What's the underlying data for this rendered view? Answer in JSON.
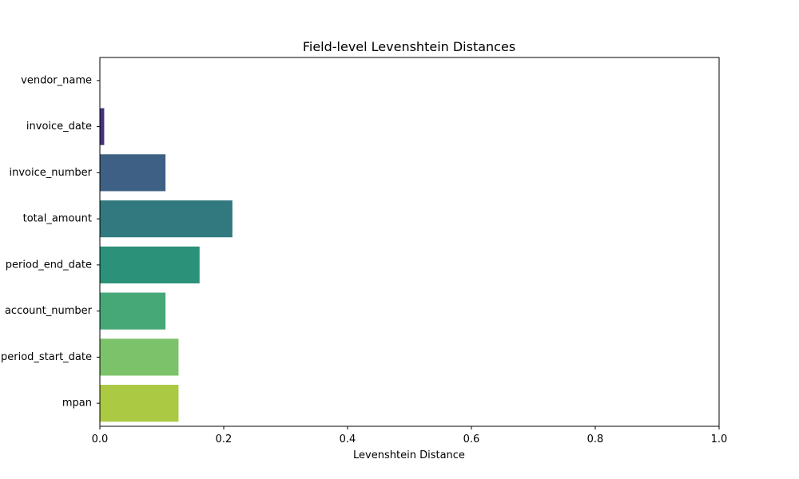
{
  "chart_data": {
    "type": "bar",
    "orientation": "horizontal",
    "title": "Field-level Levenshtein Distances",
    "xlabel": "Levenshtein Distance",
    "ylabel": "",
    "xlim": [
      0,
      1
    ],
    "xticks": [
      "0.0",
      "0.2",
      "0.4",
      "0.6",
      "0.8",
      "1.0"
    ],
    "grid": false,
    "categories": [
      "vendor_name",
      "invoice_date",
      "invoice_number",
      "total_amount",
      "period_end_date",
      "account_number",
      "period_start_date",
      "mpan"
    ],
    "values": [
      0.0,
      0.007,
      0.106,
      0.214,
      0.161,
      0.106,
      0.127,
      0.127
    ],
    "colors": [
      "#482475",
      "#46337e",
      "#3e6085",
      "#32787f",
      "#2b9178",
      "#46a877",
      "#7cc26a",
      "#abc943"
    ]
  }
}
